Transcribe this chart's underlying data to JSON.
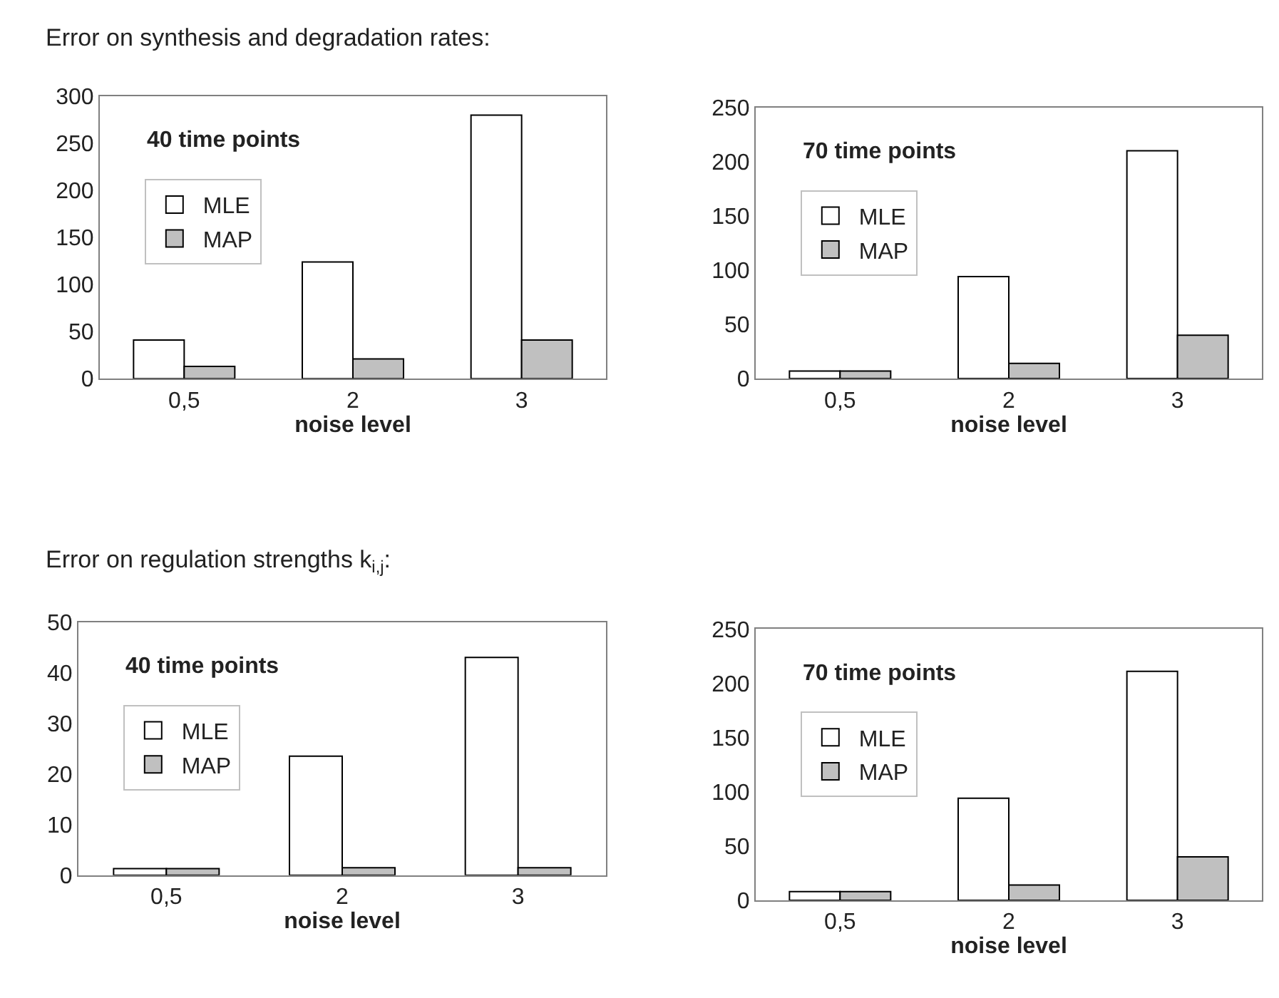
{
  "chart_data": [
    {
      "type": "bar",
      "title": "Error on synthesis and degradation rates:",
      "categories": [
        "0,5",
        "2",
        "3"
      ],
      "xlabel": "noise level",
      "annotations": [
        "40 time points"
      ],
      "series": [
        {
          "name": "MLE",
          "color": "#ffffff",
          "values": [
            41,
            124,
            280
          ]
        },
        {
          "name": "MAP",
          "color": "#c0c0c0",
          "values": [
            13,
            21,
            41
          ]
        }
      ],
      "ylim": [
        0,
        300
      ],
      "yticks": [
        0,
        50,
        100,
        150,
        200,
        250,
        300
      ],
      "legend": "top left"
    },
    {
      "type": "bar",
      "categories": [
        "0,5",
        "2",
        "3"
      ],
      "xlabel": "noise level",
      "annotations": [
        "70 time points"
      ],
      "series": [
        {
          "name": "MLE",
          "color": "#ffffff",
          "values": [
            7,
            94,
            210
          ]
        },
        {
          "name": "MAP",
          "color": "#c0c0c0",
          "values": [
            7,
            14,
            40
          ]
        }
      ],
      "ylim": [
        0,
        250
      ],
      "yticks": [
        0,
        50,
        100,
        150,
        200,
        250
      ],
      "legend": "top left"
    },
    {
      "type": "bar",
      "title": "Error on regulation strengths k$_{i,j}$:",
      "categories": [
        "0,5",
        "2",
        "3"
      ],
      "xlabel": "noise level",
      "annotations": [
        "40 time points"
      ],
      "series": [
        {
          "name": "MLE",
          "color": "#ffffff",
          "values": [
            1.3,
            23.5,
            43
          ]
        },
        {
          "name": "MAP",
          "color": "#c0c0c0",
          "values": [
            1.3,
            1.5,
            1.5
          ]
        }
      ],
      "ylim": [
        0,
        50
      ],
      "yticks": [
        0,
        10,
        20,
        30,
        40,
        50
      ],
      "legend": "top left"
    },
    {
      "type": "bar",
      "categories": [
        "0,5",
        "2",
        "3"
      ],
      "xlabel": "noise level",
      "annotations": [
        "70 time points"
      ],
      "series": [
        {
          "name": "MLE",
          "color": "#ffffff",
          "values": [
            8,
            94,
            211
          ]
        },
        {
          "name": "MAP",
          "color": "#c0c0c0",
          "values": [
            8,
            14,
            40
          ]
        }
      ],
      "ylim": [
        0,
        250
      ],
      "yticks": [
        0,
        50,
        100,
        150,
        200,
        250
      ],
      "legend": "top left"
    }
  ]
}
